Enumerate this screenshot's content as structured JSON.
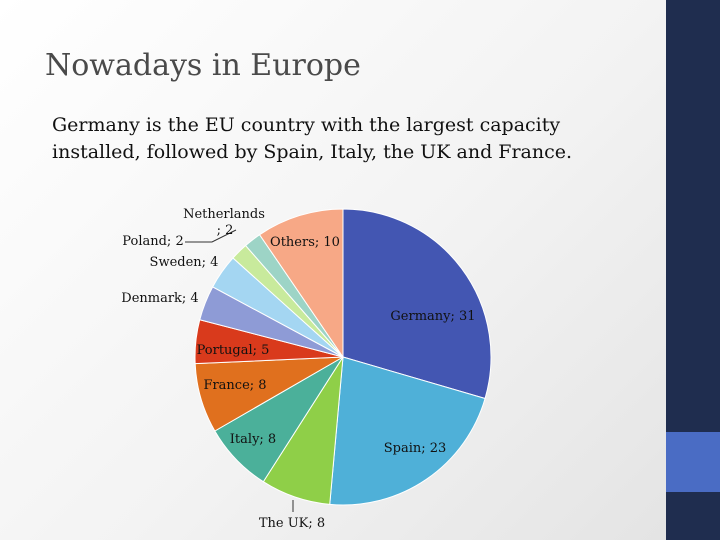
{
  "slide": {
    "title": "Nowadays in Europe",
    "subtitle": "Germany is the EU country with the largest capacity installed, followed by Spain, Italy, the UK and France."
  },
  "colors": {
    "sidebar": "#1f2d4f",
    "accent": "#4a6cc4"
  },
  "chart_data": {
    "type": "pie",
    "categories": [
      "Germany",
      "Spain",
      "The UK",
      "Italy",
      "France",
      "Portugal",
      "Denmark",
      "Sweden",
      "Poland",
      "Netherlands",
      "Others"
    ],
    "values": [
      31,
      23,
      8,
      8,
      8,
      5,
      4,
      4,
      2,
      2,
      10
    ],
    "labels": [
      "Germany; 31",
      "Spain; 23",
      "The UK; 8",
      "Italy; 8",
      "France; 8",
      "Portugal; 5",
      "Denmark; 4",
      "Sweden; 4",
      "Poland; 2",
      "Netherlands ; 2",
      "Others; 10"
    ],
    "colors": [
      "#4356b2",
      "#4fb0d8",
      "#8fcf48",
      "#4bb09a",
      "#e0701e",
      "#d93a1c",
      "#8e9bd6",
      "#a4d6f2",
      "#c8ea9c",
      "#9dd4c6",
      "#f7a886"
    ]
  }
}
